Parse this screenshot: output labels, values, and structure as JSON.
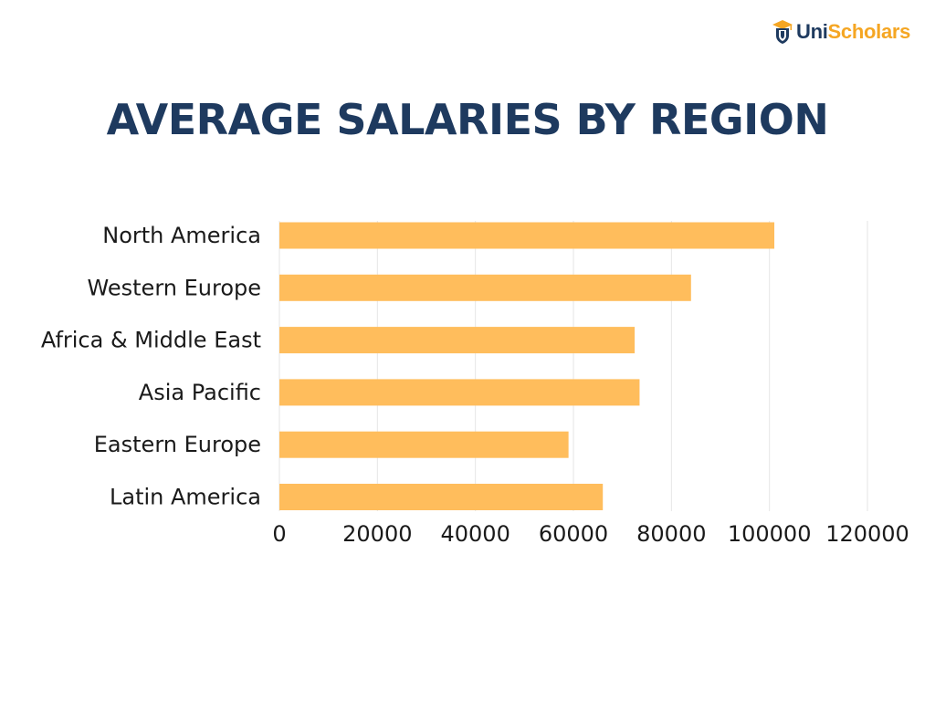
{
  "brand": {
    "part1": "Uni",
    "part2": "Scholars",
    "colors": {
      "navy": "#1e3a5f",
      "gold": "#f5a623"
    }
  },
  "chart_data": {
    "type": "bar",
    "orientation": "horizontal",
    "title": "AVERAGE SALARIES BY REGION",
    "categories": [
      "North America",
      "Western Europe",
      "Africa & Middle East",
      "Asia Pacific",
      "Eastern Europe",
      "Latin America"
    ],
    "values": [
      101000,
      84000,
      72500,
      73500,
      59000,
      66000
    ],
    "xlim": [
      0,
      120000
    ],
    "x_ticks": [
      "0",
      "20000",
      "40000",
      "60000",
      "80000",
      "100000",
      "120000"
    ],
    "grid": true,
    "bar_color": "#ffbd5c",
    "title_color": "#1e3a5f",
    "grid_color": "#e6e6e6"
  }
}
